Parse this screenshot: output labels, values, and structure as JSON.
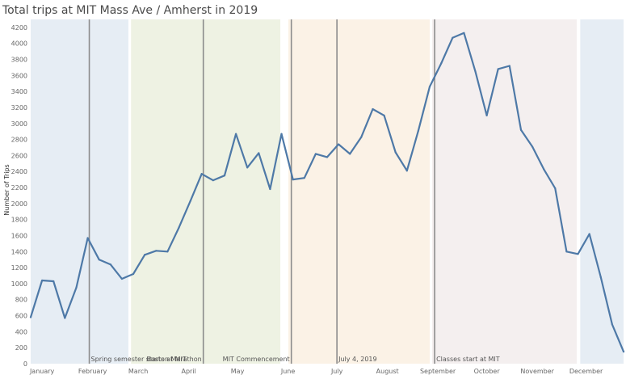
{
  "chart_data": {
    "type": "line",
    "title": "Total trips at MIT Mass Ave / Amherst in 2019",
    "ylabel": "Number of Trips",
    "xlabel": "",
    "ylim": [
      0,
      4300
    ],
    "xlim": [
      0,
      52
    ],
    "yticks": [
      0,
      200,
      400,
      600,
      800,
      1000,
      1200,
      1400,
      1600,
      1800,
      2000,
      2200,
      2400,
      2600,
      2800,
      3000,
      3200,
      3400,
      3600,
      3800,
      4000,
      4200
    ],
    "grid": false,
    "line_color": "#4e79a7",
    "months": [
      {
        "label": "January",
        "week": 1
      },
      {
        "label": "February",
        "week": 5.43
      },
      {
        "label": "March",
        "week": 9.43
      },
      {
        "label": "April",
        "week": 13.86
      },
      {
        "label": "May",
        "week": 18.14
      },
      {
        "label": "June",
        "week": 22.57
      },
      {
        "label": "July",
        "week": 26.86
      },
      {
        "label": "August",
        "week": 31.29
      },
      {
        "label": "September",
        "week": 35.71
      },
      {
        "label": "October",
        "week": 40
      },
      {
        "label": "November",
        "week": 44.43
      },
      {
        "label": "December",
        "week": 48.71
      }
    ],
    "bands": [
      {
        "from": 0,
        "to": 8.57,
        "color": "#e6edf4"
      },
      {
        "from": 8.57,
        "to": 8.8,
        "color": "#ffffff"
      },
      {
        "from": 8.8,
        "to": 21.9,
        "color": "#eef2e3"
      },
      {
        "from": 21.9,
        "to": 22.6,
        "color": "#ffffff"
      },
      {
        "from": 22.6,
        "to": 35.0,
        "color": "#fbf2e6"
      },
      {
        "from": 35.0,
        "to": 35.2,
        "color": "#ffffff"
      },
      {
        "from": 35.2,
        "to": 47.9,
        "color": "#f4efef"
      },
      {
        "from": 47.9,
        "to": 48.2,
        "color": "#ffffff"
      },
      {
        "from": 48.2,
        "to": 52,
        "color": "#e6edf4"
      }
    ],
    "events": [
      {
        "label": "Spring semester starts at MIT",
        "week": 5.14
      },
      {
        "label": "Boston Marathon",
        "week": 15.14
      },
      {
        "label": "MIT Commencement",
        "week": 22.86
      },
      {
        "label": "July 4, 2019",
        "week": 26.86
      },
      {
        "label": "Classes start at MIT",
        "week": 35.43
      }
    ],
    "series": [
      {
        "values": [
          {
            "week": 0,
            "trips": 580
          },
          {
            "week": 1,
            "trips": 1040
          },
          {
            "week": 2,
            "trips": 1030
          },
          {
            "week": 3,
            "trips": 570
          },
          {
            "week": 4,
            "trips": 950
          },
          {
            "week": 5,
            "trips": 1570
          },
          {
            "week": 6,
            "trips": 1300
          },
          {
            "week": 7,
            "trips": 1240
          },
          {
            "week": 8,
            "trips": 1060
          },
          {
            "week": 9,
            "trips": 1120
          },
          {
            "week": 10,
            "trips": 1360
          },
          {
            "week": 11,
            "trips": 1410
          },
          {
            "week": 12,
            "trips": 1400
          },
          {
            "week": 13,
            "trips": 1700
          },
          {
            "week": 14,
            "trips": 2030
          },
          {
            "week": 15,
            "trips": 2370
          },
          {
            "week": 16,
            "trips": 2290
          },
          {
            "week": 17,
            "trips": 2350
          },
          {
            "week": 18,
            "trips": 2870
          },
          {
            "week": 19,
            "trips": 2450
          },
          {
            "week": 20,
            "trips": 2630
          },
          {
            "week": 21,
            "trips": 2180
          },
          {
            "week": 22,
            "trips": 2870
          },
          {
            "week": 23,
            "trips": 2300
          },
          {
            "week": 24,
            "trips": 2320
          },
          {
            "week": 25,
            "trips": 2620
          },
          {
            "week": 26,
            "trips": 2580
          },
          {
            "week": 27,
            "trips": 2740
          },
          {
            "week": 28,
            "trips": 2620
          },
          {
            "week": 29,
            "trips": 2830
          },
          {
            "week": 30,
            "trips": 3180
          },
          {
            "week": 31,
            "trips": 3100
          },
          {
            "week": 32,
            "trips": 2640
          },
          {
            "week": 33,
            "trips": 2410
          },
          {
            "week": 34,
            "trips": 2910
          },
          {
            "week": 35,
            "trips": 3460
          },
          {
            "week": 36,
            "trips": 3750
          },
          {
            "week": 37,
            "trips": 4070
          },
          {
            "week": 38,
            "trips": 4130
          },
          {
            "week": 39,
            "trips": 3650
          },
          {
            "week": 40,
            "trips": 3100
          },
          {
            "week": 41,
            "trips": 3680
          },
          {
            "week": 42,
            "trips": 3720
          },
          {
            "week": 43,
            "trips": 2920
          },
          {
            "week": 44,
            "trips": 2710
          },
          {
            "week": 45,
            "trips": 2430
          },
          {
            "week": 46,
            "trips": 2190
          },
          {
            "week": 47,
            "trips": 1400
          },
          {
            "week": 48,
            "trips": 1370
          },
          {
            "week": 49,
            "trips": 1620
          },
          {
            "week": 50,
            "trips": 1080
          },
          {
            "week": 51,
            "trips": 490
          },
          {
            "week": 52,
            "trips": 150
          }
        ]
      }
    ]
  }
}
